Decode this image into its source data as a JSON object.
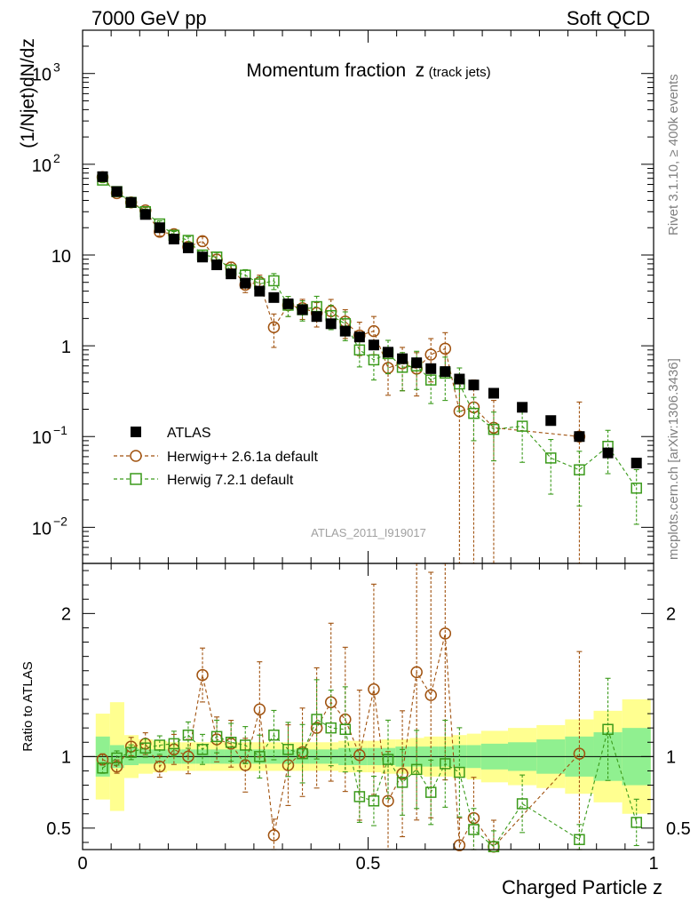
{
  "header": {
    "left": "7000 GeV pp",
    "right": "Soft QCD"
  },
  "side_text": {
    "top": "Rivet 3.1.10, ≥ 400k events",
    "bottom": "mcplots.cern.ch [arXiv:1306.3436]"
  },
  "analysis_id": "ATLAS_2011_I919017",
  "colors": {
    "atlas": "#000000",
    "herwigpp": "#a0520f",
    "herwig7": "#3a9a1a",
    "band_inner": "#90f090",
    "band_outer": "#ffff90"
  },
  "chart_data": [
    {
      "type": "scatter",
      "panel": "main",
      "title": "Momentum fraction",
      "title_var": "z",
      "title_sub": "(track jets)",
      "ylabel": "(1/Njet)dN/dz",
      "yscale": "log",
      "xlim": [
        0,
        1
      ],
      "ylim": [
        0.004,
        3000
      ],
      "ytick_labels": [
        {
          "value": 0.01,
          "base": "10",
          "exp": "−2"
        },
        {
          "value": 0.1,
          "base": "10",
          "exp": "−1"
        },
        {
          "value": 1,
          "base": "1",
          "exp": ""
        },
        {
          "value": 10,
          "base": "10",
          "exp": ""
        },
        {
          "value": 100,
          "base": "10",
          "exp": "2"
        },
        {
          "value": 1000,
          "base": "10",
          "exp": "3"
        }
      ],
      "legend": [
        "ATLAS",
        "Herwig++ 2.6.1a default",
        "Herwig 7.2.1 default"
      ],
      "legend_position": "bottom-left",
      "series": [
        {
          "name": "ATLAS",
          "marker": "filled-square",
          "x": [
            0.035,
            0.06,
            0.085,
            0.11,
            0.135,
            0.16,
            0.185,
            0.21,
            0.235,
            0.26,
            0.285,
            0.31,
            0.335,
            0.36,
            0.385,
            0.41,
            0.435,
            0.46,
            0.485,
            0.51,
            0.535,
            0.56,
            0.585,
            0.61,
            0.635,
            0.66,
            0.685,
            0.72,
            0.77,
            0.82,
            0.87,
            0.92,
            0.97
          ],
          "y": [
            73,
            50,
            38,
            28,
            20,
            15,
            12,
            9.5,
            7.8,
            6.2,
            4.9,
            4.0,
            3.4,
            2.9,
            2.5,
            2.1,
            1.75,
            1.45,
            1.25,
            1.02,
            0.85,
            0.72,
            0.65,
            0.56,
            0.52,
            0.43,
            0.37,
            0.3,
            0.21,
            0.15,
            0.1,
            0.066,
            0.051
          ]
        },
        {
          "name": "Herwig++ 2.6.1a default",
          "marker": "open-circle",
          "x": [
            0.035,
            0.06,
            0.085,
            0.11,
            0.135,
            0.16,
            0.185,
            0.21,
            0.235,
            0.26,
            0.285,
            0.31,
            0.335,
            0.36,
            0.385,
            0.41,
            0.435,
            0.46,
            0.485,
            0.51,
            0.535,
            0.56,
            0.585,
            0.61,
            0.635,
            0.66,
            0.685,
            0.72,
            0.87
          ],
          "y": [
            72,
            48,
            38,
            31,
            18,
            17,
            12.3,
            14.2,
            8.9,
            7.3,
            4.7,
            5.0,
            1.6,
            2.8,
            2.6,
            2.3,
            2.4,
            1.85,
            1.3,
            1.45,
            0.57,
            0.64,
            0.56,
            0.8,
            0.93,
            0.19,
            0.21,
            0.125,
            0.1
          ],
          "err": [
            0.06,
            0.06,
            0.07,
            0.08,
            0.1,
            0.1,
            0.12,
            0.12,
            0.14,
            0.14,
            0.18,
            0.2,
            0.4,
            0.25,
            0.25,
            0.3,
            0.35,
            0.35,
            0.4,
            0.45,
            0.5,
            0.5,
            0.5,
            0.5,
            0.5,
            1.0,
            1.0,
            1.0,
            1.4
          ]
        },
        {
          "name": "Herwig 7.2.1 default",
          "marker": "open-square",
          "x": [
            0.035,
            0.06,
            0.085,
            0.11,
            0.135,
            0.16,
            0.185,
            0.21,
            0.235,
            0.26,
            0.285,
            0.31,
            0.335,
            0.36,
            0.385,
            0.41,
            0.435,
            0.46,
            0.485,
            0.51,
            0.535,
            0.56,
            0.585,
            0.61,
            0.635,
            0.66,
            0.685,
            0.72,
            0.77,
            0.82,
            0.87,
            0.92,
            0.97
          ],
          "y": [
            67,
            50,
            38,
            30,
            22,
            16.5,
            14.5,
            10,
            9.5,
            6.8,
            6.0,
            4.8,
            5.2,
            2.8,
            2.5,
            2.7,
            2.15,
            1.75,
            0.9,
            0.7,
            0.82,
            0.58,
            0.6,
            0.42,
            0.5,
            0.38,
            0.18,
            0.12,
            0.13,
            0.058,
            0.043,
            0.078,
            0.027
          ],
          "err": [
            0.06,
            0.06,
            0.07,
            0.07,
            0.08,
            0.1,
            0.1,
            0.12,
            0.12,
            0.15,
            0.15,
            0.2,
            0.2,
            0.25,
            0.25,
            0.3,
            0.3,
            0.35,
            0.35,
            0.4,
            0.4,
            0.45,
            0.45,
            0.45,
            0.5,
            0.5,
            0.5,
            0.55,
            0.6,
            0.6,
            0.6,
            0.5,
            0.6
          ]
        }
      ]
    },
    {
      "type": "scatter",
      "panel": "ratio",
      "ylabel": "Ratio to ATLAS",
      "xlabel": "Charged Particle z",
      "xlim": [
        0,
        1
      ],
      "ylim": [
        0.35,
        2.35
      ],
      "xticks": [
        {
          "value": 0,
          "label": "0"
        },
        {
          "value": 0.5,
          "label": "0.5"
        },
        {
          "value": 1,
          "label": "1"
        }
      ],
      "yticks": [
        {
          "value": 0.5,
          "label": "0.5"
        },
        {
          "value": 1,
          "label": "1"
        },
        {
          "value": 2,
          "label": "2"
        }
      ],
      "band_edges": [
        0.023,
        0.048,
        0.073,
        0.098,
        0.123,
        0.148,
        0.173,
        0.198,
        0.223,
        0.248,
        0.273,
        0.298,
        0.323,
        0.348,
        0.373,
        0.398,
        0.423,
        0.448,
        0.473,
        0.498,
        0.523,
        0.548,
        0.573,
        0.598,
        0.623,
        0.648,
        0.673,
        0.698,
        0.745,
        0.795,
        0.845,
        0.895,
        0.945,
        0.995
      ],
      "band_inner": [
        0.14,
        0.08,
        0.06,
        0.05,
        0.05,
        0.05,
        0.05,
        0.05,
        0.05,
        0.05,
        0.05,
        0.05,
        0.05,
        0.05,
        0.05,
        0.05,
        0.05,
        0.06,
        0.06,
        0.06,
        0.06,
        0.07,
        0.07,
        0.07,
        0.07,
        0.08,
        0.08,
        0.09,
        0.1,
        0.12,
        0.14,
        0.17,
        0.2
      ],
      "band_outer": [
        0.3,
        0.38,
        0.15,
        0.12,
        0.11,
        0.1,
        0.1,
        0.1,
        0.1,
        0.1,
        0.1,
        0.1,
        0.1,
        0.1,
        0.1,
        0.1,
        0.1,
        0.11,
        0.11,
        0.11,
        0.12,
        0.12,
        0.13,
        0.14,
        0.14,
        0.15,
        0.16,
        0.18,
        0.2,
        0.22,
        0.26,
        0.32,
        0.4
      ],
      "series": [
        {
          "name": "Herwig++ 2.6.1a default",
          "x": [
            0.035,
            0.06,
            0.085,
            0.11,
            0.135,
            0.16,
            0.185,
            0.21,
            0.235,
            0.26,
            0.285,
            0.31,
            0.335,
            0.36,
            0.385,
            0.41,
            0.435,
            0.46,
            0.485,
            0.51,
            0.535,
            0.56,
            0.585,
            0.61,
            0.635,
            0.66,
            0.685,
            0.72,
            0.87
          ],
          "y": [
            0.98,
            0.93,
            1.07,
            1.09,
            0.93,
            1.05,
            1.0,
            1.57,
            1.12,
            1.09,
            0.94,
            1.33,
            0.45,
            0.94,
            1.03,
            1.2,
            1.38,
            1.26,
            1.01,
            1.47,
            0.69,
            0.88,
            1.59,
            1.43,
            1.86,
            0.38,
            0.57,
            0.37,
            1.02
          ],
          "err": [
            0.04,
            0.05,
            0.06,
            0.07,
            0.08,
            0.1,
            0.12,
            0.12,
            0.14,
            0.15,
            0.2,
            0.25,
            0.25,
            0.3,
            0.3,
            0.35,
            0.4,
            0.4,
            0.45,
            0.5,
            0.5,
            0.5,
            0.65,
            0.6,
            0.55,
            0.5,
            0.5,
            0.5,
            0.7
          ]
        },
        {
          "name": "Herwig 7.2.1 default",
          "x": [
            0.035,
            0.06,
            0.085,
            0.11,
            0.135,
            0.16,
            0.185,
            0.21,
            0.235,
            0.26,
            0.285,
            0.31,
            0.335,
            0.36,
            0.385,
            0.41,
            0.435,
            0.46,
            0.485,
            0.51,
            0.535,
            0.56,
            0.585,
            0.61,
            0.635,
            0.66,
            0.685,
            0.72,
            0.77,
            0.87,
            0.92,
            0.97
          ],
          "y": [
            0.92,
            0.99,
            1.03,
            1.06,
            1.08,
            1.09,
            1.15,
            1.05,
            1.14,
            1.1,
            1.08,
            1.0,
            1.15,
            1.05,
            1.02,
            1.26,
            1.2,
            1.19,
            0.72,
            0.69,
            0.98,
            0.82,
            0.91,
            0.75,
            0.95,
            0.89,
            0.49,
            0.37,
            0.67,
            0.42,
            1.19,
            0.54
          ],
          "err": [
            0.04,
            0.05,
            0.05,
            0.06,
            0.06,
            0.08,
            0.08,
            0.1,
            0.1,
            0.12,
            0.12,
            0.15,
            0.15,
            0.18,
            0.2,
            0.22,
            0.22,
            0.25,
            0.25,
            0.25,
            0.28,
            0.28,
            0.3,
            0.3,
            0.32,
            0.35,
            0.3,
            0.3,
            0.3,
            0.25,
            0.3,
            0.3
          ]
        }
      ]
    }
  ]
}
